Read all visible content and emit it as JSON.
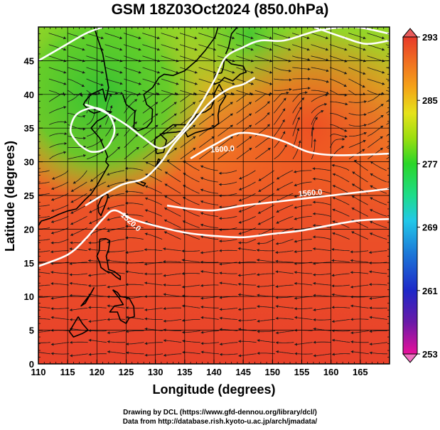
{
  "title": "GSM 18Z03Oct2024 (850.0hPa)",
  "chart_data": {
    "type": "heatmap",
    "xlabel": "Longitude (degrees)",
    "ylabel": "Latitude  (degrees)",
    "xlim": [
      110,
      170
    ],
    "ylim": [
      0,
      50
    ],
    "x_ticks": [
      "110",
      "115",
      "120",
      "125",
      "130",
      "135",
      "140",
      "145",
      "150",
      "155",
      "160",
      "165"
    ],
    "y_ticks": [
      "0",
      "5",
      "10",
      "15",
      "20",
      "25",
      "30",
      "35",
      "40",
      "45"
    ],
    "colorbar": {
      "min": 253,
      "max": 293,
      "tick_labels": [
        "293",
        "285",
        "277",
        "269",
        "261",
        "253"
      ],
      "colors": [
        "#e8109a",
        "#6a1aa8",
        "#1e28c8",
        "#1c7ad8",
        "#22c8e8",
        "#1edc8a",
        "#2ad628",
        "#9ade10",
        "#e6e21a",
        "#f4a418",
        "#f07020",
        "#e83a2a"
      ]
    },
    "contour_labels": [
      "1600.0",
      "1560.0",
      "1520.0"
    ],
    "contours": [
      {
        "level": "1520.0",
        "points": [
          [
            110,
            14.5
          ],
          [
            115,
            16.2
          ],
          [
            118,
            18.5
          ],
          [
            121,
            21.5
          ],
          [
            123,
            22.8
          ],
          [
            126,
            21.5
          ],
          [
            130,
            20.5
          ],
          [
            135,
            19.5
          ],
          [
            140,
            19.0
          ],
          [
            145,
            18.8
          ],
          [
            150,
            19.3
          ],
          [
            155,
            19.8
          ],
          [
            160,
            20.6
          ],
          [
            165,
            21.3
          ],
          [
            170,
            21.5
          ]
        ]
      },
      {
        "level": "1560.0",
        "points": [
          [
            118,
            23.5
          ],
          [
            124,
            26.5
          ],
          [
            128,
            27.5
          ],
          [
            131,
            30.0
          ],
          [
            133,
            32.5
          ],
          [
            136,
            35.5
          ],
          [
            139,
            38.5
          ],
          [
            141,
            40.0
          ],
          [
            143,
            41.0
          ],
          [
            145,
            41.5
          ],
          [
            147,
            42.5
          ]
        ]
      },
      {
        "level": "1560.0",
        "points": [
          [
            132,
            23.5
          ],
          [
            136,
            23.0
          ],
          [
            140,
            22.8
          ],
          [
            145,
            23.5
          ],
          [
            150,
            24.0
          ],
          [
            155,
            24.5
          ],
          [
            160,
            25.0
          ],
          [
            165,
            25.5
          ],
          [
            170,
            26.0
          ]
        ]
      },
      {
        "level": "1600.0",
        "points": [
          [
            136,
            30.5
          ],
          [
            140,
            32.5
          ],
          [
            144,
            34.2
          ],
          [
            148,
            34.0
          ],
          [
            152,
            33.0
          ],
          [
            156,
            31.5
          ],
          [
            160,
            31.0
          ],
          [
            164,
            31.0
          ],
          [
            170,
            31.2
          ]
        ]
      },
      {
        "level": "",
        "points": [
          [
            118,
            38.5
          ],
          [
            121,
            37.5
          ],
          [
            125,
            35.5
          ],
          [
            128,
            33.5
          ],
          [
            131,
            32.0
          ],
          [
            134,
            34.0
          ],
          [
            137,
            37.5
          ],
          [
            140,
            42.0
          ],
          [
            142,
            45.5
          ],
          [
            145,
            47.0
          ],
          [
            148,
            48.0
          ],
          [
            152,
            48.0
          ],
          [
            158,
            49.5
          ],
          [
            164,
            50.0
          ],
          [
            170,
            49.0
          ]
        ]
      },
      {
        "level": "",
        "points": [
          [
            110,
            45.0
          ],
          [
            114,
            47.0
          ],
          [
            118,
            49.0
          ],
          [
            121,
            50.0
          ]
        ]
      },
      {
        "level": "",
        "points": [
          [
            157,
            50.0
          ],
          [
            162,
            48.5
          ],
          [
            166,
            47.5
          ],
          [
            170,
            48.0
          ]
        ]
      },
      {
        "level": "",
        "points": [
          [
            117,
            32.5
          ],
          [
            115.5,
            34.5
          ],
          [
            116.5,
            37.0
          ],
          [
            119.5,
            38.0
          ],
          [
            122,
            37.0
          ],
          [
            123,
            34.5
          ],
          [
            121.5,
            32.0
          ],
          [
            119,
            31.5
          ],
          [
            117,
            32.5
          ]
        ]
      }
    ]
  },
  "credits": {
    "line1": "Drawing by DCL (https://www.gfd-dennou.org/library/dcl/)",
    "line2": "Data from http://database.rish.kyoto-u.ac.jp/arch/jmadata/"
  }
}
